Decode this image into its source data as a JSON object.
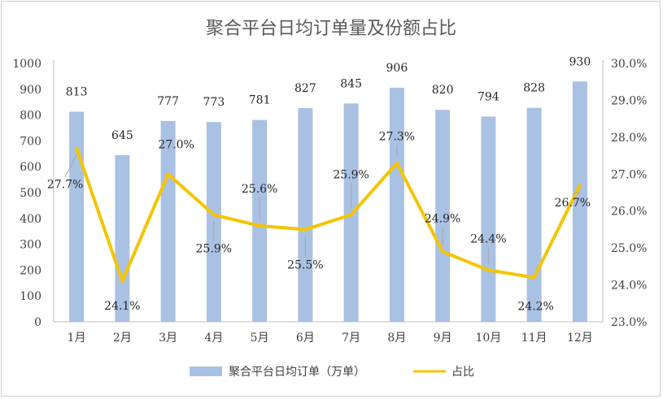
{
  "chart_data": {
    "type": "bar",
    "title": "聚合平台日均订单量及份额占比",
    "categories": [
      "1月",
      "2月",
      "3月",
      "4月",
      "5月",
      "6月",
      "7月",
      "8月",
      "9月",
      "10月",
      "11月",
      "12月"
    ],
    "series": [
      {
        "name": "聚合平台日均订单（万单）",
        "type": "bar",
        "axis": "left",
        "color": "#a9c1e3",
        "values": [
          813,
          645,
          777,
          773,
          781,
          827,
          845,
          906,
          820,
          794,
          828,
          930
        ],
        "labels": [
          "813",
          "645",
          "777",
          "773",
          "781",
          "827",
          "845",
          "906",
          "820",
          "794",
          "828",
          "930"
        ]
      },
      {
        "name": "占比",
        "type": "line",
        "axis": "right",
        "color": "#f5c400",
        "values": [
          27.7,
          24.1,
          27.0,
          25.9,
          25.6,
          25.5,
          25.9,
          27.3,
          24.9,
          24.4,
          24.2,
          26.7
        ],
        "labels": [
          "27.7%",
          "24.1%",
          "27.0%",
          "25.9%",
          "25.6%",
          "25.5%",
          "25.9%",
          "27.3%",
          "24.9%",
          "24.4%",
          "24.2%",
          "26.7%"
        ]
      }
    ],
    "y_left": {
      "ylim": [
        0,
        1000
      ],
      "ticks": [
        "0",
        "100",
        "200",
        "300",
        "400",
        "500",
        "600",
        "700",
        "800",
        "900",
        "1000"
      ]
    },
    "y_right": {
      "ylim": [
        23.0,
        30.0
      ],
      "ticks": [
        "23.0%",
        "24.0%",
        "25.0%",
        "26.0%",
        "27.0%",
        "28.0%",
        "29.0%",
        "30.0%"
      ]
    },
    "grid": false,
    "legend": "bottom"
  }
}
